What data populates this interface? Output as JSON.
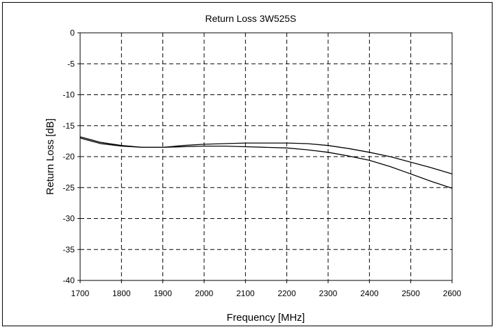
{
  "chart_data": {
    "type": "line",
    "title": "Return Loss 3W525S",
    "xlabel": "Frequency [MHz]",
    "ylabel": "Return Loss [dB]",
    "xlim": [
      1700,
      2600
    ],
    "ylim": [
      -40,
      0
    ],
    "xticks": [
      1700,
      1800,
      1900,
      2000,
      2100,
      2200,
      2300,
      2400,
      2500,
      2600
    ],
    "yticks": [
      0,
      -5,
      -10,
      -15,
      -20,
      -25,
      -30,
      -35,
      -40
    ],
    "grid": true,
    "line_color": "#000000",
    "series": [
      {
        "x": [
          1700,
          1750,
          1800,
          1850,
          1900,
          1950,
          2000,
          2050,
          2100,
          2150,
          2200,
          2250,
          2300,
          2350,
          2400,
          2450,
          2500,
          2550,
          2600
        ],
        "y": [
          -16.8,
          -17.7,
          -18.2,
          -18.5,
          -18.5,
          -18.4,
          -18.3,
          -18.3,
          -18.4,
          -18.5,
          -18.6,
          -18.9,
          -19.3,
          -19.9,
          -20.6,
          -21.6,
          -22.8,
          -24.0,
          -25.1
        ]
      },
      {
        "x": [
          1700,
          1750,
          1800,
          1850,
          1900,
          1950,
          2000,
          2050,
          2100,
          2150,
          2200,
          2250,
          2300,
          2350,
          2400,
          2450,
          2500,
          2550,
          2600
        ],
        "y": [
          -17.0,
          -17.9,
          -18.3,
          -18.5,
          -18.5,
          -18.2,
          -18.0,
          -17.9,
          -17.8,
          -17.8,
          -17.8,
          -17.9,
          -18.2,
          -18.7,
          -19.3,
          -20.0,
          -20.9,
          -21.8,
          -22.8
        ]
      }
    ]
  }
}
